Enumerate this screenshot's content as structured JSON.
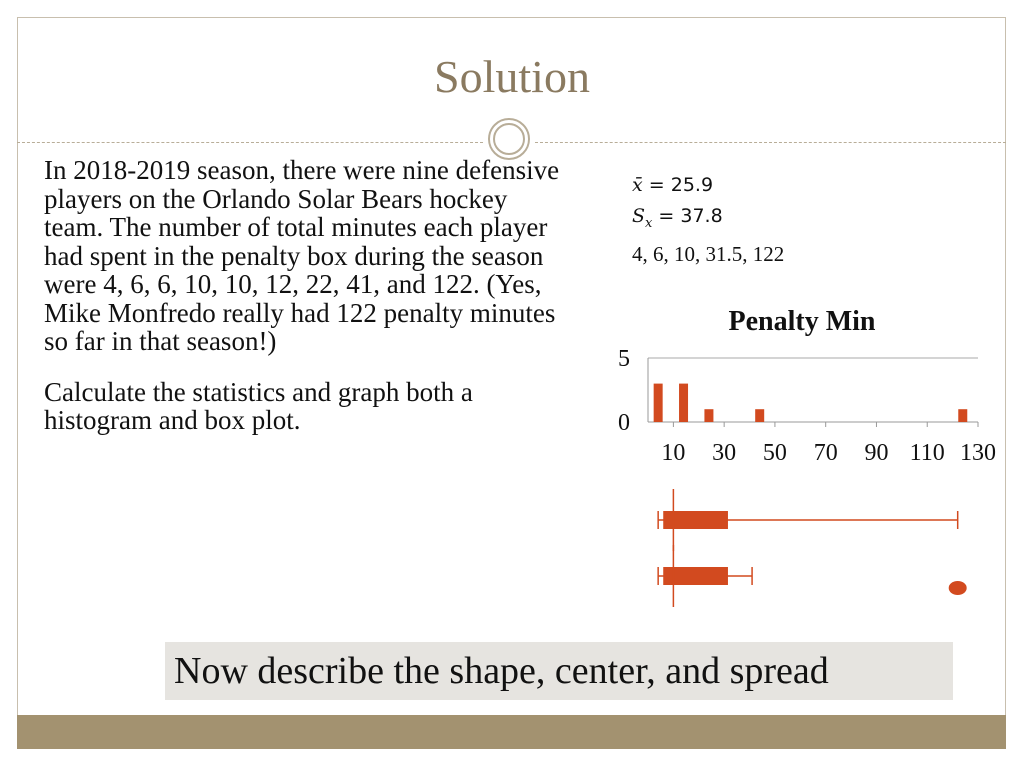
{
  "slide": {
    "title": "Solution",
    "paragraphs": [
      "In 2018-2019 season, there were nine defensive players on the Orlando Solar Bears hockey team.  The number of total minutes each player had spent in the penalty box during the season were 4, 6, 6, 10, 10, 12, 22, 41, and 122. (Yes, Mike Monfredo really had 122 penalty minutes so far in that season!)",
      "Calculate the statistics and graph both a histogram and box plot."
    ],
    "stats": {
      "mean_symbol": "x̄",
      "mean_value": "= 25.9",
      "sd_symbol": "S",
      "sd_subscript": "x",
      "sd_value": "= 37.8",
      "five_number_summary": "4, 6, 10, 31.5, 122"
    },
    "callout": "Now describe the shape, center, and spread"
  },
  "colors": {
    "accent": "#d24a1f",
    "title": "#8a7a60",
    "footer": "#a39270",
    "callout_bg": "#e6e4e0"
  },
  "chart_data": [
    {
      "type": "bar",
      "title": "Penalty Min",
      "categories": [
        "4",
        "14",
        "24",
        "44",
        "124"
      ],
      "x": [
        4,
        14,
        24,
        44,
        124
      ],
      "values": [
        3,
        3,
        1,
        1,
        1
      ],
      "xticks": [
        10,
        30,
        50,
        70,
        90,
        110,
        130
      ],
      "yticks": [
        0,
        5
      ],
      "xlim": [
        0,
        130
      ],
      "ylim": [
        0,
        5
      ],
      "grid": false
    },
    {
      "type": "boxplot",
      "orientation": "horizontal",
      "boxes": [
        {
          "min": 4,
          "q1": 6,
          "median": 10,
          "q3": 31.5,
          "max": 122,
          "outliers": []
        },
        {
          "min": 4,
          "q1": 6,
          "median": 10,
          "q3": 31.5,
          "max": 41,
          "outliers": [
            122
          ]
        }
      ],
      "xlim": [
        0,
        130
      ]
    }
  ]
}
